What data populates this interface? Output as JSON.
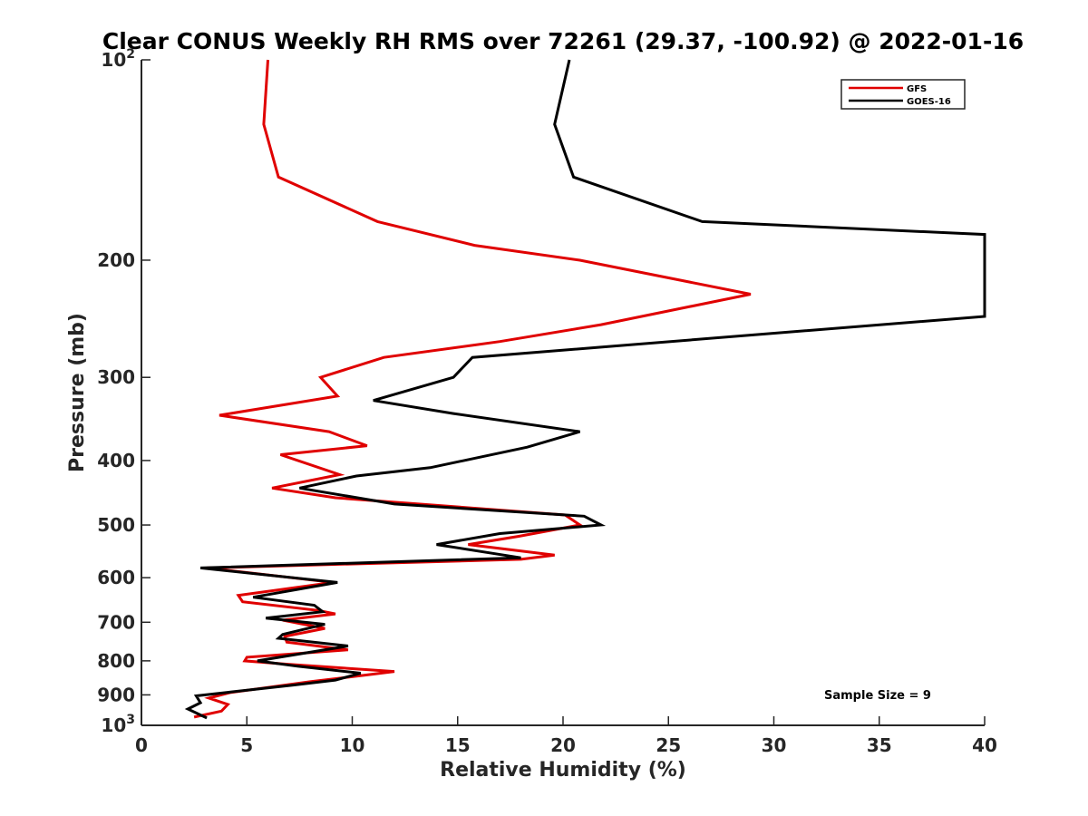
{
  "chart_data": {
    "type": "line",
    "title": "Clear CONUS Weekly RH RMS over 72261 (29.37, -100.92) @ 2022-01-16",
    "xlabel": "Relative Humidity (%)",
    "ylabel": "Pressure (mb)",
    "xlim": [
      0,
      40
    ],
    "ylim": [
      100,
      1000
    ],
    "y_scale": "log",
    "y_reversed": true,
    "grid": false,
    "legend_position": "top-right",
    "x_ticks": [
      "0",
      "5",
      "10",
      "15",
      "20",
      "25",
      "30",
      "35",
      "40"
    ],
    "y_ticks": [
      {
        "value": 100,
        "base": "10",
        "exp": "2"
      },
      {
        "value": 200,
        "label": "200"
      },
      {
        "value": 300,
        "label": "300"
      },
      {
        "value": 400,
        "label": "400"
      },
      {
        "value": 500,
        "label": "500"
      },
      {
        "value": 600,
        "label": "600"
      },
      {
        "value": 700,
        "label": "700"
      },
      {
        "value": 800,
        "label": "800"
      },
      {
        "value": 900,
        "label": "900"
      },
      {
        "value": 1000,
        "base": "10",
        "exp": "3"
      }
    ],
    "annotation": "Sample Size = 9",
    "series": [
      {
        "name": "GFS",
        "color": "#e00000",
        "points": [
          [
            6.0,
            100
          ],
          [
            5.8,
            125
          ],
          [
            6.5,
            150
          ],
          [
            11.2,
            175
          ],
          [
            15.8,
            190
          ],
          [
            20.8,
            200
          ],
          [
            28.9,
            225
          ],
          [
            21.8,
            250
          ],
          [
            17.0,
            265
          ],
          [
            11.5,
            280
          ],
          [
            8.5,
            300
          ],
          [
            9.3,
            320
          ],
          [
            3.7,
            342
          ],
          [
            8.9,
            362
          ],
          [
            10.7,
            380
          ],
          [
            6.6,
            392
          ],
          [
            9.4,
            420
          ],
          [
            6.2,
            440
          ],
          [
            9.2,
            455
          ],
          [
            20.1,
            483
          ],
          [
            20.8,
            500
          ],
          [
            17.9,
            520
          ],
          [
            15.5,
            535
          ],
          [
            19.6,
            555
          ],
          [
            18.0,
            563
          ],
          [
            3.1,
            580
          ],
          [
            9.1,
            610
          ],
          [
            4.6,
            638
          ],
          [
            4.8,
            652
          ],
          [
            8.4,
            672
          ],
          [
            9.2,
            680
          ],
          [
            6.7,
            695
          ],
          [
            8.7,
            715
          ],
          [
            6.8,
            735
          ],
          [
            6.9,
            750
          ],
          [
            9.8,
            770
          ],
          [
            5.0,
            790
          ],
          [
            4.9,
            800
          ],
          [
            7.0,
            810
          ],
          [
            12.0,
            830
          ],
          [
            10.7,
            840
          ],
          [
            8.0,
            860
          ],
          [
            4.2,
            893
          ],
          [
            3.2,
            910
          ],
          [
            4.1,
            930
          ],
          [
            3.8,
            952
          ],
          [
            2.5,
            972
          ]
        ]
      },
      {
        "name": "GOES-16",
        "color": "#000000",
        "points": [
          [
            20.3,
            100
          ],
          [
            19.6,
            125
          ],
          [
            20.5,
            150
          ],
          [
            26.6,
            175
          ],
          [
            40.0,
            183
          ],
          [
            40.0,
            243
          ],
          [
            15.7,
            280
          ],
          [
            14.8,
            300
          ],
          [
            11.0,
            325
          ],
          [
            14.8,
            340
          ],
          [
            20.8,
            362
          ],
          [
            18.3,
            382
          ],
          [
            13.7,
            410
          ],
          [
            10.2,
            422
          ],
          [
            7.5,
            440
          ],
          [
            12.0,
            465
          ],
          [
            21.0,
            485
          ],
          [
            21.8,
            500
          ],
          [
            17.0,
            515
          ],
          [
            14.0,
            535
          ],
          [
            18.0,
            560
          ],
          [
            2.8,
            580
          ],
          [
            9.3,
            610
          ],
          [
            5.3,
            642
          ],
          [
            8.2,
            660
          ],
          [
            8.6,
            675
          ],
          [
            5.9,
            690
          ],
          [
            8.7,
            705
          ],
          [
            6.7,
            730
          ],
          [
            6.5,
            740
          ],
          [
            9.8,
            760
          ],
          [
            5.5,
            800
          ],
          [
            7.4,
            815
          ],
          [
            10.4,
            835
          ],
          [
            9.2,
            855
          ],
          [
            7.2,
            870
          ],
          [
            4.1,
            892
          ],
          [
            2.6,
            903
          ],
          [
            2.8,
            925
          ],
          [
            2.2,
            945
          ],
          [
            3.1,
            975
          ]
        ]
      }
    ]
  }
}
